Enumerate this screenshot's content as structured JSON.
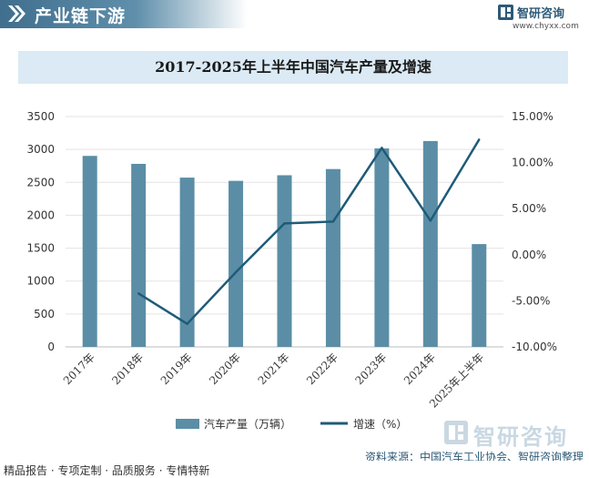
{
  "header": {
    "section_title": "产业链下游",
    "brand_name": "智研咨询",
    "brand_url": "www.chyxx.com"
  },
  "chart_data": {
    "type": "bar+line",
    "title": "2017-2025年上半年中国汽车产量及增速",
    "categories": [
      "2017年",
      "2018年",
      "2019年",
      "2020年",
      "2021年",
      "2022年",
      "2023年",
      "2024年",
      "2025年上半年"
    ],
    "series": [
      {
        "name": "汽车产量（万辆）",
        "type": "bar",
        "axis": "left",
        "color": "#5b8ea6",
        "values": [
          2902,
          2781,
          2572,
          2523,
          2608,
          2702,
          3016,
          3128,
          1562
        ]
      },
      {
        "name": "增速（%）",
        "type": "line",
        "axis": "right",
        "color": "#1f5b78",
        "values": [
          null,
          -4.2,
          -7.5,
          -1.9,
          3.4,
          3.6,
          11.6,
          3.7,
          12.5
        ]
      }
    ],
    "left_axis": {
      "min": 0,
      "max": 3500,
      "ticks": [
        0,
        500,
        1000,
        1500,
        2000,
        2500,
        3000,
        3500
      ],
      "labels": [
        "0",
        "500",
        "1000",
        "1500",
        "2000",
        "2500",
        "3000",
        "3500"
      ]
    },
    "right_axis": {
      "min": -10,
      "max": 15,
      "ticks": [
        -10,
        -5,
        0,
        5,
        10,
        15
      ],
      "labels": [
        "-10.00%",
        "-5.00%",
        "0.00%",
        "5.00%",
        "10.00%",
        "15.00%"
      ]
    },
    "grid": true,
    "legend": "bottom-center"
  },
  "footer": {
    "source": "资料来源：中国汽车工业协会、智研咨询整理",
    "tagline": "精品报告 · 专项定制 · 品质服务 · 专情特新",
    "logo_name": "智研咨询"
  }
}
